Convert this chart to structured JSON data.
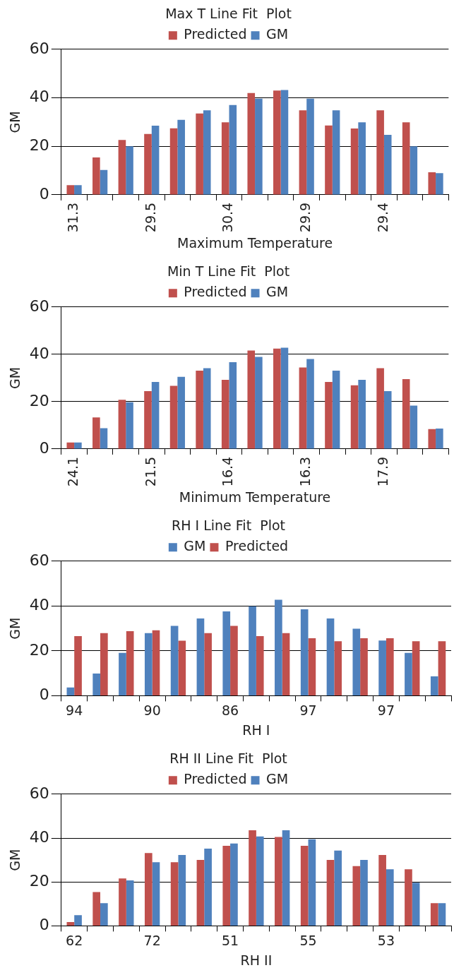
{
  "chart_data": [
    {
      "type": "bar",
      "title": "Max T Line Fit  Plot",
      "xlabel": "Maximum Temperature",
      "ylabel": "GM",
      "categories": [
        "31.3",
        null,
        null,
        "29.5",
        null,
        null,
        "30.4",
        null,
        null,
        "29.9",
        null,
        null,
        "29.4",
        null,
        null
      ],
      "series": [
        {
          "name": "Predicted",
          "color": "#c0504d",
          "values": [
            4,
            15.4,
            22.6,
            25.1,
            27.4,
            33.5,
            29.9,
            42,
            43,
            34.8,
            28.6,
            27.3,
            34.8,
            29.9,
            9.3
          ]
        },
        {
          "name": "GM",
          "color": "#4f81bd",
          "values": [
            4,
            10.2,
            20,
            28.5,
            30.9,
            34.8,
            37,
            39.6,
            43.2,
            39.6,
            34.8,
            29.9,
            24.7,
            20,
            8.9
          ]
        }
      ],
      "ylim": [
        0,
        60
      ],
      "yticks": [
        0,
        20,
        40,
        60
      ],
      "grid": "y",
      "legend": "top"
    },
    {
      "type": "bar",
      "title": "Min T Line Fit  Plot",
      "xlabel": "Minimum Temperature",
      "ylabel": "GM",
      "categories": [
        "24.1",
        null,
        null,
        "21.5",
        null,
        null,
        "16.4",
        null,
        null,
        "16.3",
        null,
        null,
        "17.9",
        null,
        null
      ],
      "series": [
        {
          "name": "Predicted",
          "color": "#c0504d",
          "values": [
            2.7,
            13.3,
            20.8,
            24.4,
            26.7,
            33.1,
            29.2,
            41.6,
            42.4,
            34.4,
            28.3,
            26.9,
            34.1,
            29.5,
            8.4
          ]
        },
        {
          "name": "GM",
          "color": "#4f81bd",
          "values": [
            2.7,
            8.8,
            19.7,
            28.3,
            30.5,
            34.1,
            36.7,
            38.9,
            42.8,
            38,
            33.1,
            29.2,
            24.4,
            18.3,
            8.6
          ]
        }
      ],
      "ylim": [
        0,
        60
      ],
      "yticks": [
        0,
        20,
        40,
        60
      ],
      "grid": "y",
      "legend": "top"
    },
    {
      "type": "bar",
      "title": "RH I Line Fit  Plot",
      "xlabel": "RH I",
      "ylabel": "GM",
      "categories": [
        "94",
        null,
        null,
        "90",
        null,
        null,
        "86",
        null,
        null,
        "97",
        null,
        null,
        "97",
        null,
        null
      ],
      "series": [
        {
          "name": "GM",
          "color": "#4f81bd",
          "values": [
            3.7,
            9.9,
            19.1,
            27.9,
            31.1,
            34.4,
            37.6,
            39.9,
            42.8,
            38.5,
            34.4,
            29.9,
            24.6,
            19.1,
            8.6
          ]
        },
        {
          "name": "Predicted",
          "color": "#c0504d",
          "values": [
            26.6,
            27.9,
            28.8,
            29.2,
            24.5,
            27.9,
            31.1,
            26.6,
            27.9,
            25.6,
            24.3,
            25.6,
            25.6,
            24.3,
            24.3
          ]
        }
      ],
      "ylim": [
        0,
        60
      ],
      "yticks": [
        0,
        20,
        40,
        60
      ],
      "grid": "y",
      "legend": "top"
    },
    {
      "type": "bar",
      "title": "RH II Line Fit  Plot",
      "xlabel": "RH II",
      "ylabel": "GM",
      "categories": [
        "62",
        null,
        null,
        "72",
        null,
        null,
        "51",
        null,
        null,
        "55",
        null,
        null,
        "53",
        null,
        null
      ],
      "series": [
        {
          "name": "Predicted",
          "color": "#c0504d",
          "values": [
            1.7,
            15.4,
            21.6,
            33.2,
            29,
            30,
            36.5,
            43.5,
            40.5,
            36.5,
            30,
            27.2,
            32.3,
            25.8,
            10.3
          ]
        },
        {
          "name": "GM",
          "color": "#4f81bd",
          "values": [
            4.9,
            10.3,
            20.7,
            29,
            32.3,
            35.2,
            37.5,
            40.7,
            43.5,
            39.4,
            34.3,
            30,
            25.8,
            19.7,
            10.3
          ]
        }
      ],
      "ylim": [
        0,
        60
      ],
      "yticks": [
        0,
        20,
        40,
        60
      ],
      "grid": "y",
      "legend": "top"
    }
  ]
}
